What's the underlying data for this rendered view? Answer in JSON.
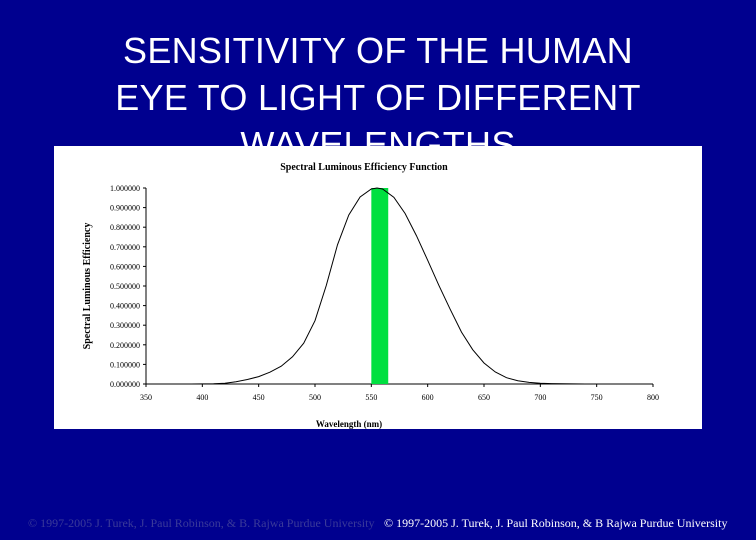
{
  "slide": {
    "title_lines": [
      "SENSITIVITY OF THE HUMAN",
      "EYE TO LIGHT OF DIFFERENT",
      "WAVELENGTHS"
    ],
    "footer_ghost": "© 1997-2005 J. Turek, J. Paul Robinson, & B. Rajwa Purdue University",
    "footer": "© 1997-2005 J. Turek, J. Paul Robinson, & B Rajwa Purdue University"
  },
  "colors": {
    "background": "#00008f",
    "highlight_bar": "#00e040",
    "curve": "#000000"
  },
  "chart_data": {
    "type": "line",
    "title": "Spectral Luminous Efficiency Function",
    "xlabel": "Wavelength (nm)",
    "ylabel": "Spectral Luminous Efficiency",
    "xlim": [
      350,
      800
    ],
    "ylim": [
      0,
      1
    ],
    "x_ticks": [
      350,
      400,
      450,
      500,
      550,
      600,
      650,
      700,
      750,
      800
    ],
    "y_ticks": [
      "0.000000",
      "0.100000",
      "0.200000",
      "0.300000",
      "0.400000",
      "0.500000",
      "0.600000",
      "0.700000",
      "0.800000",
      "0.900000",
      "1.000000"
    ],
    "grid": false,
    "highlight_band": {
      "x_start": 550,
      "x_end": 565
    },
    "series": [
      {
        "x": [
          380,
          390,
          400,
          410,
          420,
          430,
          440,
          450,
          460,
          470,
          480,
          490,
          500,
          510,
          520,
          530,
          540,
          550,
          555,
          560,
          570,
          580,
          590,
          600,
          610,
          620,
          630,
          640,
          650,
          660,
          670,
          680,
          690,
          700,
          710,
          720,
          730,
          740,
          750,
          760,
          770,
          780
        ],
        "y": [
          4e-05,
          0.00012,
          0.0004,
          0.0012,
          0.004,
          0.0116,
          0.023,
          0.038,
          0.06,
          0.091,
          0.139,
          0.208,
          0.323,
          0.503,
          0.71,
          0.862,
          0.954,
          0.995,
          1.0,
          0.995,
          0.952,
          0.87,
          0.757,
          0.631,
          0.503,
          0.381,
          0.265,
          0.175,
          0.107,
          0.061,
          0.032,
          0.017,
          0.0082,
          0.0041,
          0.0021,
          0.00105,
          0.00052,
          0.00025,
          0.00012,
          6e-05,
          3e-05,
          1.5e-05
        ]
      }
    ]
  }
}
